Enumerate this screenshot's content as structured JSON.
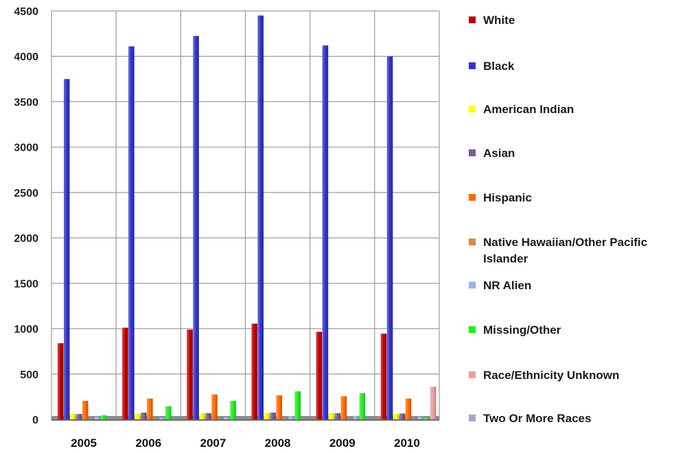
{
  "chart_data": {
    "type": "bar",
    "categories": [
      "2005",
      "2006",
      "2007",
      "2008",
      "2009",
      "2010"
    ],
    "ylim": [
      0,
      4500
    ],
    "yticks": [
      0,
      500,
      1000,
      1500,
      2000,
      2500,
      3000,
      3500,
      4000,
      4500
    ],
    "grid": true,
    "legend_position": "right",
    "series": [
      {
        "name": "White",
        "color": "#c00000",
        "values": [
          840,
          1010,
          990,
          1055,
          965,
          945
        ]
      },
      {
        "name": "Black",
        "color": "#3333cc",
        "values": [
          3750,
          4110,
          4225,
          4450,
          4120,
          4000
        ]
      },
      {
        "name": "American Indian",
        "color": "#ffff00",
        "values": [
          60,
          60,
          65,
          70,
          70,
          60
        ]
      },
      {
        "name": "Asian",
        "color": "#7a5c99",
        "values": [
          60,
          75,
          70,
          75,
          70,
          65
        ]
      },
      {
        "name": "Hispanic",
        "color": "#ff6a00",
        "values": [
          205,
          230,
          275,
          265,
          255,
          230
        ]
      },
      {
        "name": "Native Hawaiian/Other Pacific Islander",
        "color": "#dd8844",
        "values": [
          5,
          5,
          5,
          5,
          5,
          5
        ]
      },
      {
        "name": "NR Alien",
        "color": "#99b3e6",
        "values": [
          30,
          20,
          25,
          35,
          40,
          30
        ]
      },
      {
        "name": "Missing/Other",
        "color": "#22ee22",
        "values": [
          45,
          145,
          205,
          310,
          290,
          20
        ]
      },
      {
        "name": "Race/Ethnicity Unknown",
        "color": "#e8a0a0",
        "values": [
          0,
          0,
          0,
          0,
          0,
          360
        ]
      },
      {
        "name": "Two Or More Races",
        "color": "#a6a6cc",
        "values": [
          0,
          0,
          0,
          0,
          0,
          0
        ]
      }
    ]
  }
}
